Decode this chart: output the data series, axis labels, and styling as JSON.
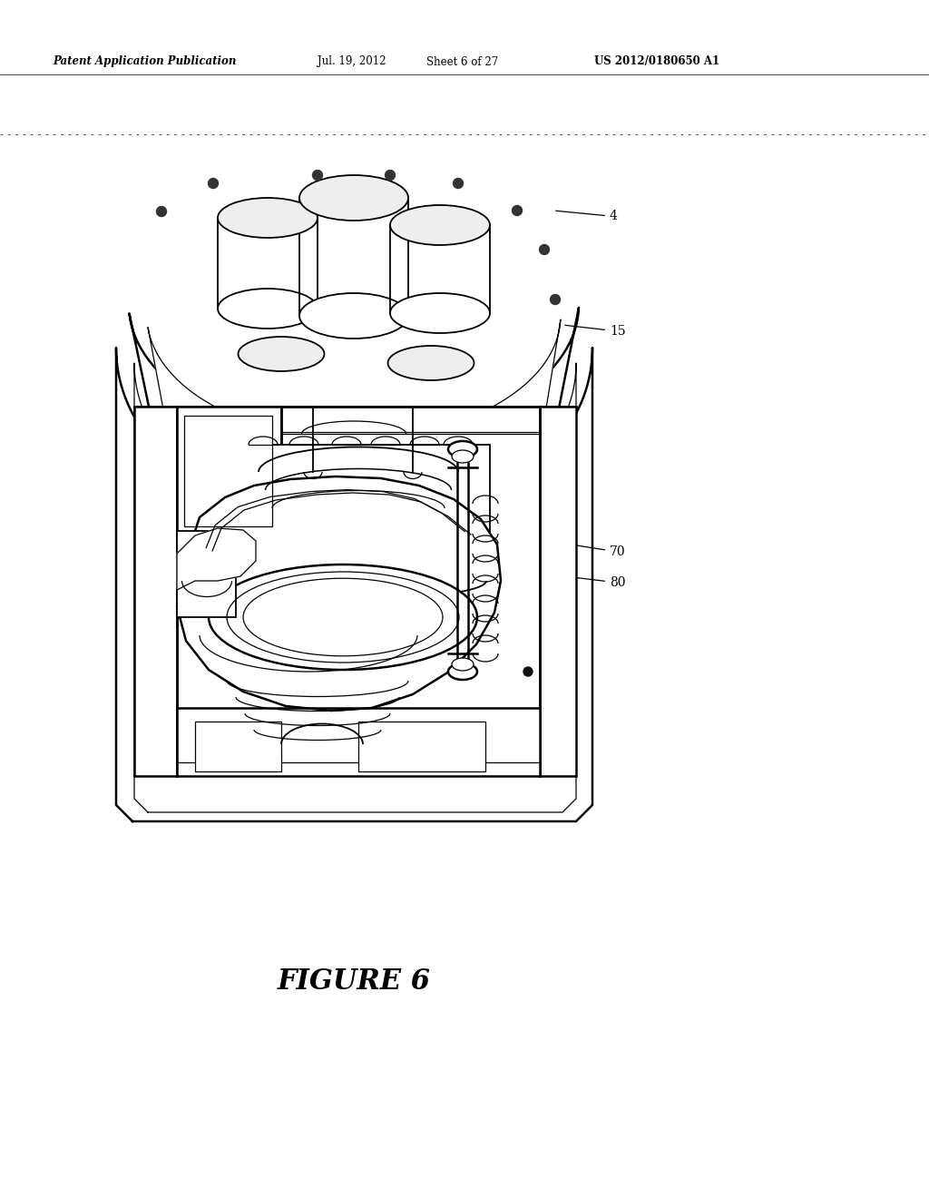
{
  "background_color": "#ffffff",
  "header_text": "Patent Application Publication",
  "header_date": "Jul. 19, 2012",
  "header_sheet": "Sheet 6 of 27",
  "header_patent": "US 2012/0180650 A1",
  "figure_label": "FIGURE 6",
  "line_color": "#000000",
  "fig_width": 10.24,
  "fig_height": 13.2
}
